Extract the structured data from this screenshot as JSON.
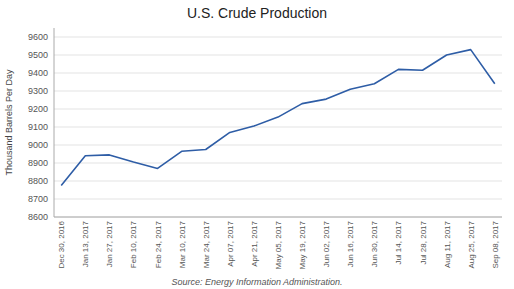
{
  "chart_data": {
    "type": "line",
    "title": "U.S. Crude Production",
    "ylabel": "Thousand Barrels Per Day",
    "annotations": [
      "Source: Energy Information Administration."
    ],
    "categories": [
      "Dec 30, 2016",
      "Jan 13, 2017",
      "Jan 27, 2017",
      "Feb 10, 2017",
      "Feb 24, 2017",
      "Mar 10, 2017",
      "Mar 24, 2017",
      "Apr 07, 2017",
      "Apr 21, 2017",
      "May 05, 2017",
      "May 19, 2017",
      "Jun 02, 2017",
      "Jun 16, 2017",
      "Jun 30, 2017",
      "Jul 14, 2017",
      "Jul 28, 2017",
      "Aug 11, 2017",
      "Aug 25, 2017",
      "Sep 08, 2017"
    ],
    "values": [
      8775,
      8940,
      8945,
      8905,
      8870,
      8965,
      8975,
      9070,
      9105,
      9155,
      9230,
      9255,
      9310,
      9340,
      9420,
      9415,
      9500,
      9530,
      9340
    ],
    "color": "#2E5DA6",
    "ylim": [
      8600,
      9650
    ],
    "yticks": [
      8600,
      8700,
      8800,
      8900,
      9000,
      9100,
      9200,
      9300,
      9400,
      9500,
      9600
    ],
    "grid": true
  }
}
